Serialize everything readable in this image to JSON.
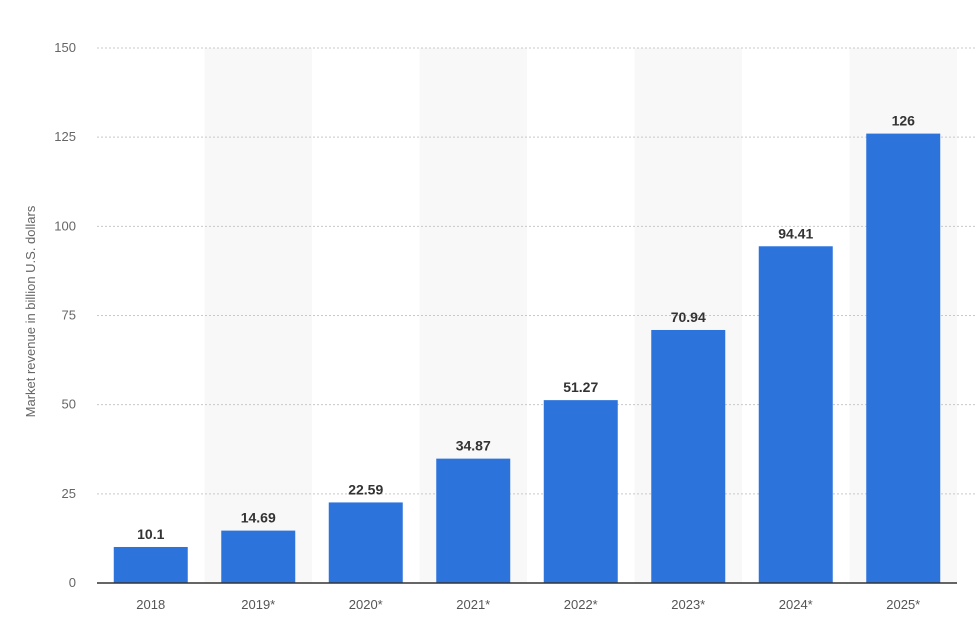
{
  "chart_data": {
    "type": "bar",
    "categories": [
      "2018",
      "2019*",
      "2020*",
      "2021*",
      "2022*",
      "2023*",
      "2024*",
      "2025*"
    ],
    "values": [
      10.1,
      14.69,
      22.59,
      34.87,
      51.27,
      70.94,
      94.41,
      126
    ],
    "data_labels": [
      "10.1",
      "14.69",
      "22.59",
      "34.87",
      "51.27",
      "70.94",
      "94.41",
      "126"
    ],
    "ylabel": "Market revenue in billion U.S. dollars",
    "ylim": [
      0,
      150
    ],
    "yticks": [
      0,
      25,
      50,
      75,
      100,
      125,
      150
    ],
    "grid": true,
    "bar_color": "#2c74dc",
    "band_color": "#f8f8f8"
  }
}
